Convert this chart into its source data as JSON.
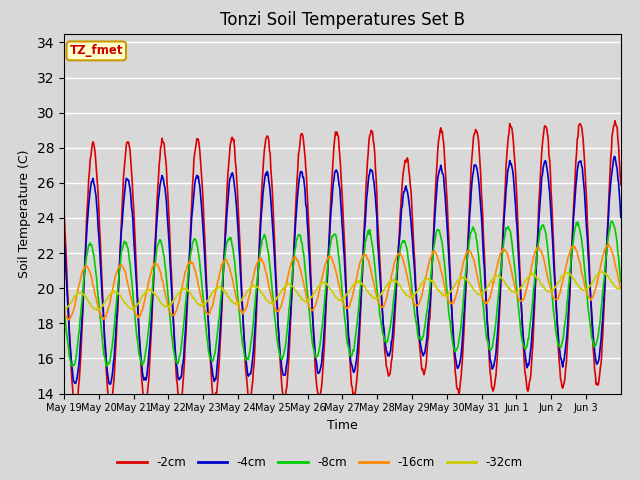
{
  "title": "Tonzi Soil Temperatures Set B",
  "xlabel": "Time",
  "ylabel": "Soil Temperature (C)",
  "ylim": [
    14,
    34.5
  ],
  "yticks": [
    14,
    16,
    18,
    20,
    22,
    24,
    26,
    28,
    30,
    32,
    34
  ],
  "annotation_text": "TZ_fmet",
  "annotation_color": "#cc0000",
  "annotation_bg": "#ffffcc",
  "annotation_border": "#cc9900",
  "series_colors": [
    "#dd0000",
    "#0000cc",
    "#00cc00",
    "#ff8800",
    "#cccc00"
  ],
  "series_labels": [
    "-2cm",
    "-4cm",
    "-8cm",
    "-16cm",
    "-32cm"
  ],
  "plot_bg": "#d8d8d8",
  "fig_bg": "#d8d8d8",
  "grid_color": "#ffffff",
  "n_days": 16
}
